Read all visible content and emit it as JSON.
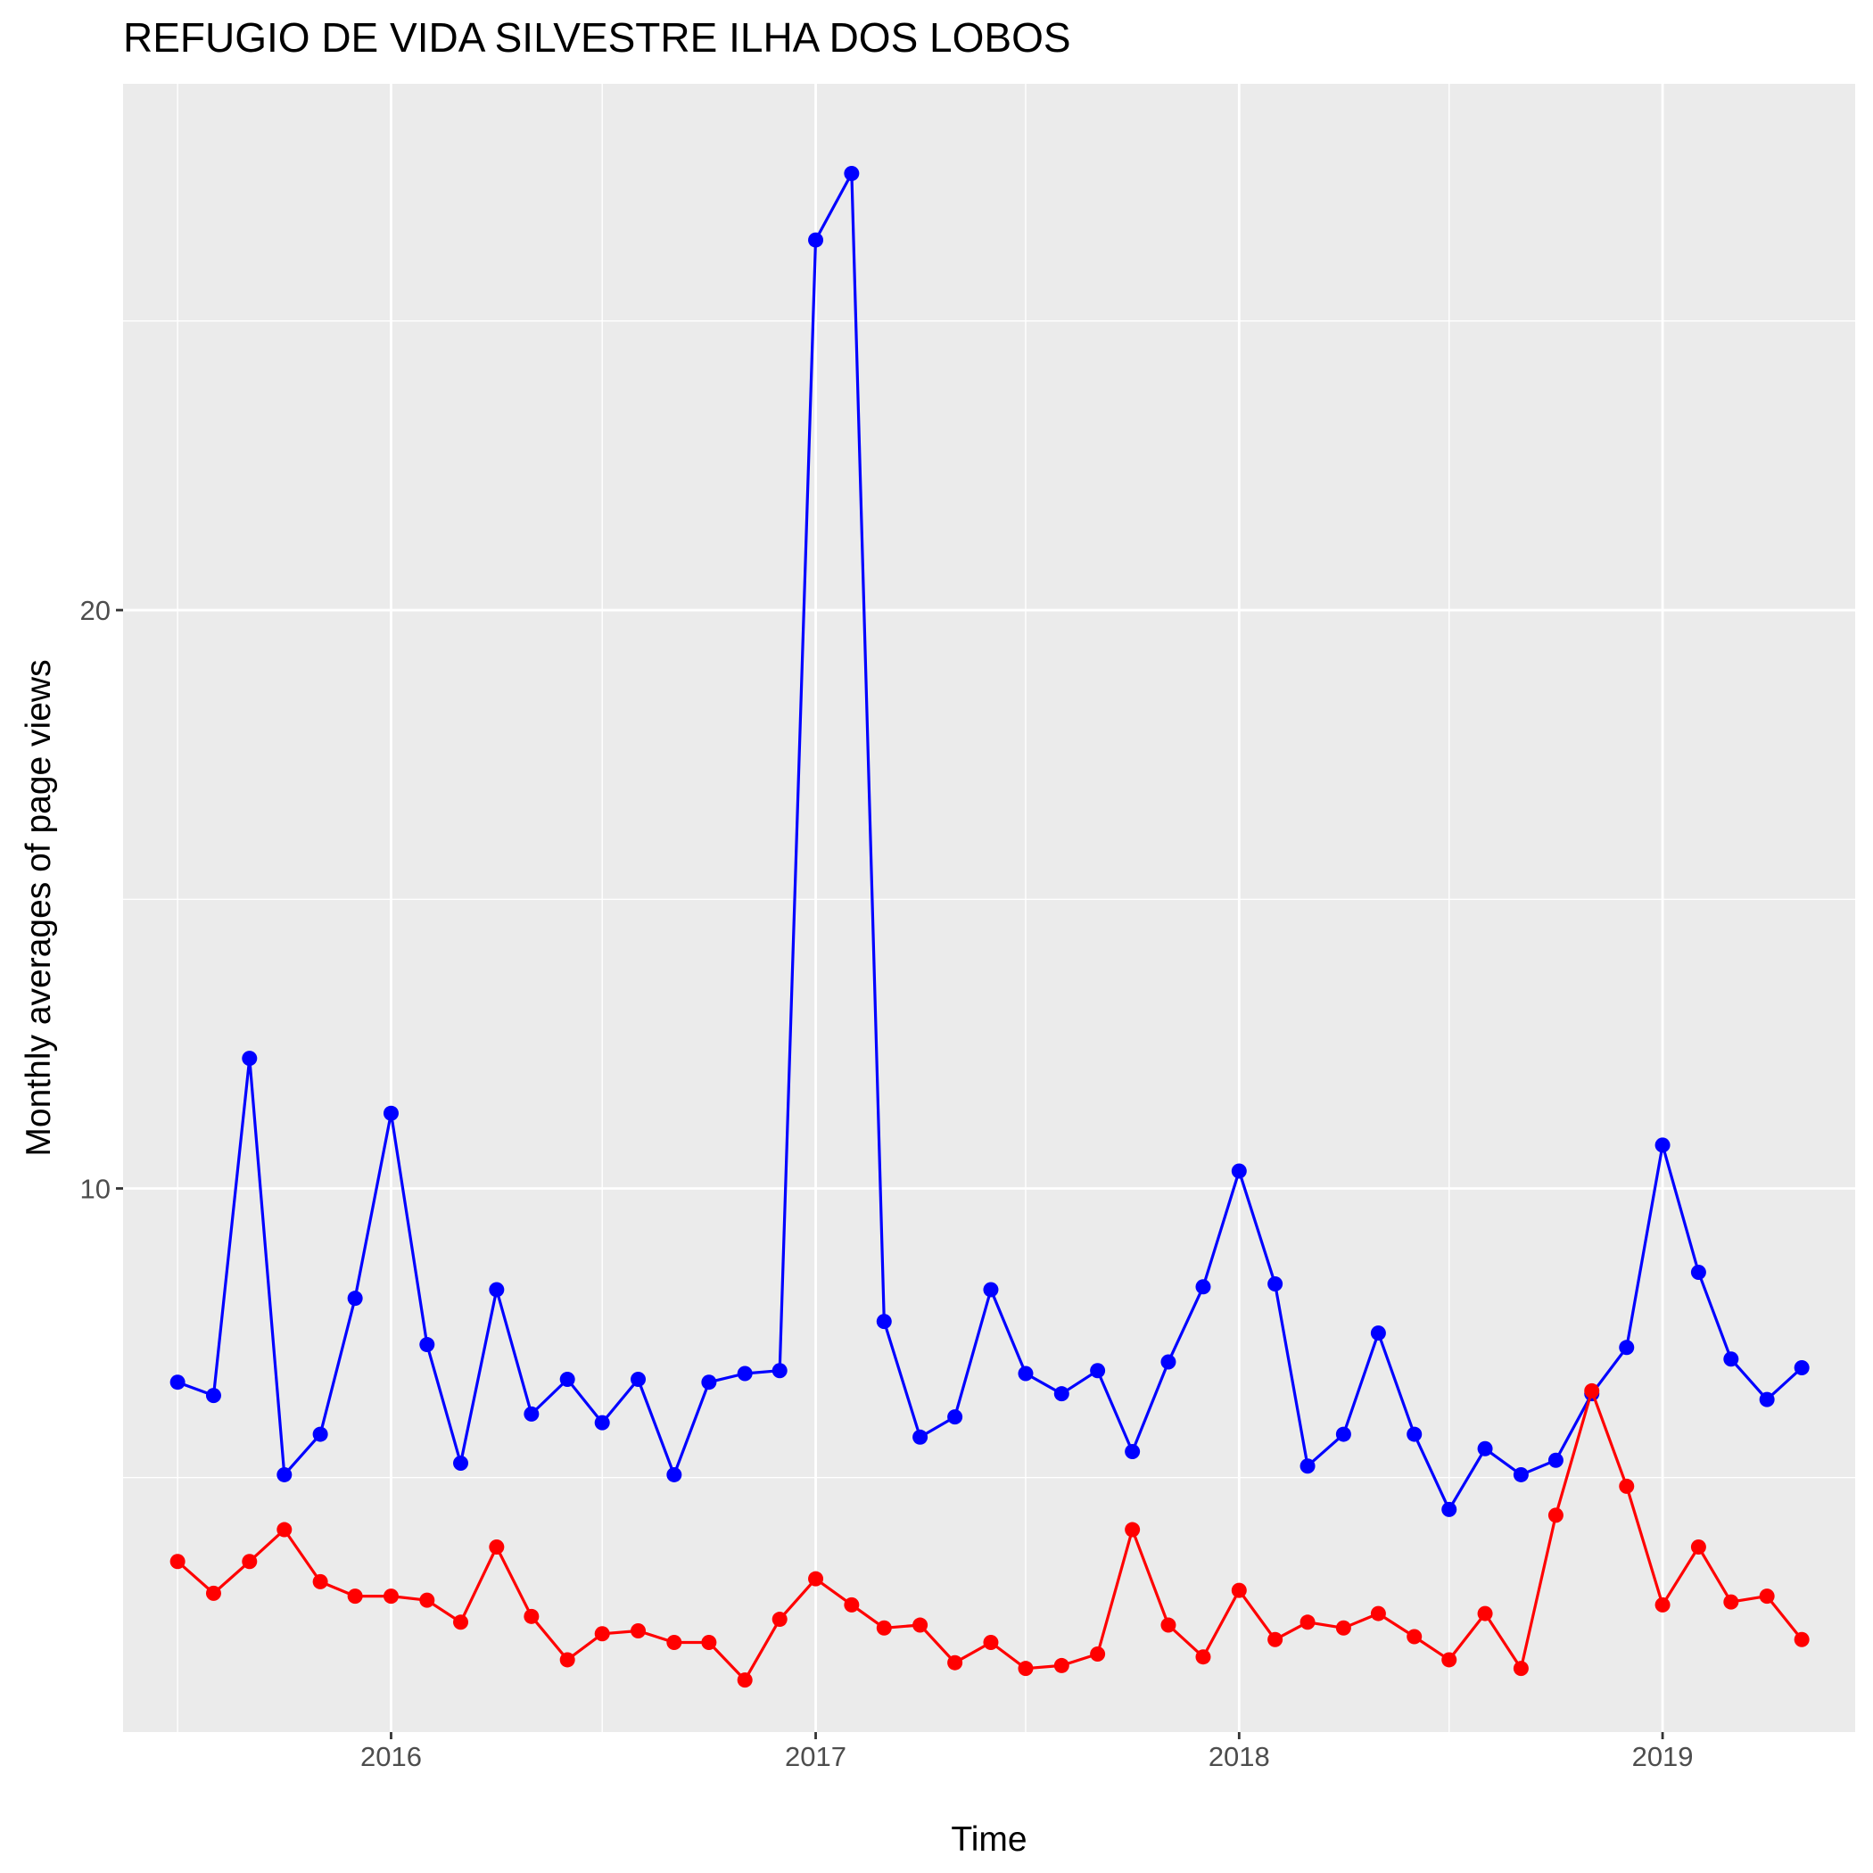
{
  "chart_data": {
    "type": "line",
    "title": "REFUGIO DE VIDA SILVESTRE ILHA DOS LOBOS",
    "xlabel": "Time",
    "ylabel": "Monthly averages of page views",
    "x_ticks": [
      "2016",
      "2017",
      "2018",
      "2019"
    ],
    "y_ticks": [
      10,
      20
    ],
    "xlim": [
      "2015-05-15",
      "2019-06-16"
    ],
    "ylim": [
      0.6,
      29.1
    ],
    "grid": true,
    "legend": "none",
    "x": [
      "2015-07-01",
      "2015-08-01",
      "2015-09-01",
      "2015-10-01",
      "2015-11-01",
      "2015-12-01",
      "2016-01-01",
      "2016-02-01",
      "2016-03-01",
      "2016-04-01",
      "2016-05-01",
      "2016-06-01",
      "2016-07-01",
      "2016-08-01",
      "2016-09-01",
      "2016-10-01",
      "2016-11-01",
      "2016-12-01",
      "2017-01-01",
      "2017-02-01",
      "2017-03-01",
      "2017-04-01",
      "2017-05-01",
      "2017-06-01",
      "2017-07-01",
      "2017-08-01",
      "2017-09-01",
      "2017-10-01",
      "2017-11-01",
      "2017-12-01",
      "2018-01-01",
      "2018-02-01",
      "2018-03-01",
      "2018-04-01",
      "2018-05-01",
      "2018-06-01",
      "2018-07-01",
      "2018-08-01",
      "2018-09-01",
      "2018-10-01",
      "2018-11-01",
      "2018-12-01",
      "2019-01-01",
      "2019-02-01",
      "2019-03-01",
      "2019-04-01",
      "2019-05-01"
    ],
    "series": [
      {
        "color": "#0000ff",
        "values": [
          6.65,
          6.42,
          12.25,
          5.05,
          5.75,
          8.1,
          11.3,
          7.3,
          5.25,
          8.25,
          6.1,
          6.7,
          5.95,
          6.7,
          5.05,
          6.65,
          6.8,
          6.85,
          26.4,
          27.55,
          7.7,
          5.7,
          6.05,
          8.25,
          6.8,
          6.45,
          6.85,
          5.45,
          7.0,
          8.3,
          10.3,
          8.35,
          5.2,
          5.75,
          7.5,
          5.75,
          4.45,
          5.5,
          5.05,
          5.3,
          6.45,
          7.25,
          10.75,
          8.55,
          7.05,
          6.35,
          6.9
        ]
      },
      {
        "color": "#ff0000",
        "values": [
          3.55,
          3.0,
          3.55,
          4.1,
          3.2,
          2.95,
          2.95,
          2.88,
          2.5,
          3.8,
          2.6,
          1.85,
          2.3,
          2.35,
          2.15,
          2.15,
          1.5,
          2.55,
          3.25,
          2.8,
          2.4,
          2.45,
          1.8,
          2.15,
          1.7,
          1.75,
          1.95,
          4.1,
          2.45,
          1.9,
          3.05,
          2.2,
          2.5,
          2.4,
          2.65,
          2.25,
          1.85,
          2.65,
          1.7,
          4.35,
          6.5,
          4.85,
          2.8,
          3.8,
          2.85,
          2.95,
          2.2
        ]
      }
    ]
  }
}
